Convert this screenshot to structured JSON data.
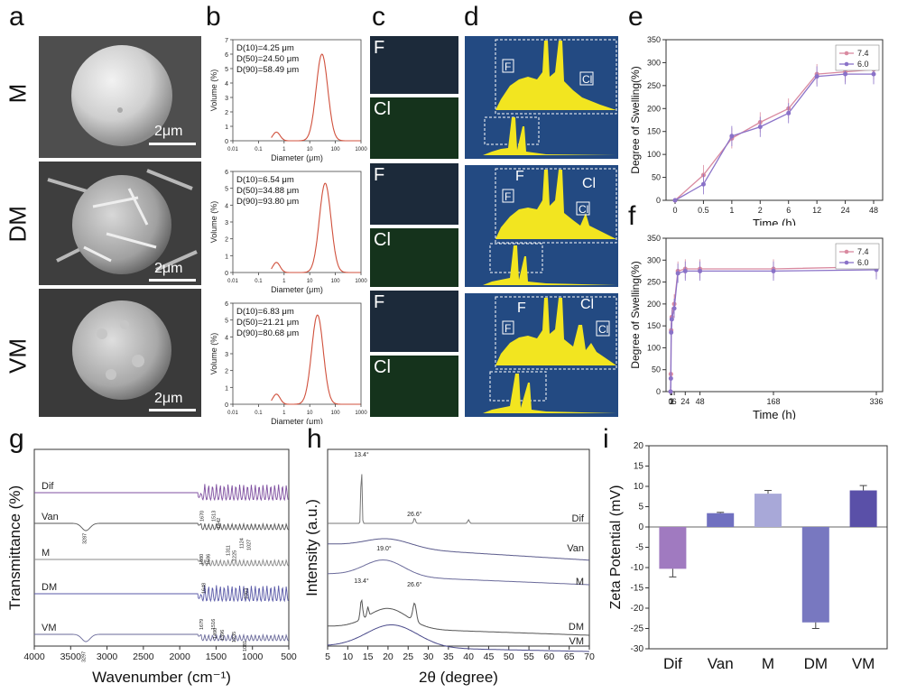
{
  "panel_letters": [
    "a",
    "b",
    "c",
    "d",
    "e",
    "f",
    "g",
    "h",
    "i"
  ],
  "sample_rows": [
    "M",
    "DM",
    "VM"
  ],
  "sem_scale": "2μm",
  "size_distribution": {
    "ylabel": "Volume (%)",
    "xlabel": "Diameter (μm)",
    "xticks": [
      "0.01",
      "0.1",
      "1",
      "10",
      "100",
      "1000"
    ],
    "panels": [
      {
        "d10": "D(10)=4.25 μm",
        "d50": "D(50)=24.50 μm",
        "d90": "D(90)=58.49 μm",
        "yticks": [
          "0",
          "1",
          "2",
          "3",
          "4",
          "5",
          "6",
          "7"
        ],
        "ymax": 7,
        "peak_x": 30,
        "peak_y": 6.0
      },
      {
        "d10": "D(10)=6.54 μm",
        "d50": "D(50)=34.88 μm",
        "d90": "D(90)=93.80 μm",
        "yticks": [
          "0",
          "1",
          "2",
          "3",
          "4",
          "5",
          "6"
        ],
        "ymax": 6,
        "peak_x": 40,
        "peak_y": 5.3
      },
      {
        "d10": "D(10)=6.83 μm",
        "d50": "D(50)=21.21 μm",
        "d90": "D(90)=80.68 μm",
        "yticks": [
          "0",
          "1",
          "2",
          "3",
          "4",
          "5",
          "6"
        ],
        "ymax": 6,
        "peak_x": 20,
        "peak_y": 5.3
      }
    ]
  },
  "eds_map_labels": [
    "F",
    "Cl"
  ],
  "eds_peak_labels": [
    "F",
    "Cl"
  ],
  "chart_data": [
    {
      "panel": "e",
      "type": "line",
      "xlabel": "Time (h)",
      "ylabel": "Degree of Swelling(%)",
      "x": [
        "0",
        "0.5",
        "1",
        "2",
        "6",
        "12",
        "24",
        "48"
      ],
      "ylim": [
        0,
        350
      ],
      "yticks": [
        "0",
        "50",
        "100",
        "150",
        "200",
        "250",
        "300",
        "350"
      ],
      "series": [
        {
          "name": "7.4",
          "color": "#d98aa0",
          "values": [
            0,
            55,
            135,
            170,
            200,
            275,
            280,
            285
          ]
        },
        {
          "name": "6.0",
          "color": "#8a72c8",
          "values": [
            0,
            35,
            140,
            160,
            190,
            270,
            275,
            275
          ]
        }
      ]
    },
    {
      "panel": "f",
      "type": "line",
      "xlabel": "Time (h)",
      "ylabel": "Degree of Swelling(%)",
      "x": [
        0,
        0.5,
        1,
        2,
        6,
        12,
        24,
        48,
        168,
        336
      ],
      "xticks": [
        "0",
        "1",
        "2",
        "6",
        "24",
        "48",
        "168",
        "336"
      ],
      "ylim": [
        0,
        350
      ],
      "yticks": [
        "0",
        "50",
        "100",
        "150",
        "200",
        "250",
        "300",
        "350"
      ],
      "series": [
        {
          "name": "7.4",
          "color": "#d98aa0",
          "values": [
            0,
            40,
            140,
            170,
            200,
            275,
            280,
            280,
            280,
            285
          ]
        },
        {
          "name": "6.0",
          "color": "#8a72c8",
          "values": [
            0,
            30,
            135,
            165,
            190,
            270,
            275,
            275,
            275,
            278
          ]
        }
      ]
    },
    {
      "panel": "g",
      "type": "line",
      "xlabel": "Wavenumber (cm⁻¹)",
      "ylabel": "Transmittance (%)",
      "xlim": [
        4000,
        500
      ],
      "xticks": [
        "4000",
        "3500",
        "3000",
        "2500",
        "2000",
        "1500",
        "1000",
        "500"
      ],
      "series": [
        {
          "name": "Dif",
          "color": "#7f4fa0"
        },
        {
          "name": "Van",
          "color": "#555555"
        },
        {
          "name": "M",
          "color": "#8a8a8a"
        },
        {
          "name": "DM",
          "color": "#5a5aa8"
        },
        {
          "name": "VM",
          "color": "#6a6a9a"
        }
      ],
      "annotations": [
        "3287",
        "1670",
        "1513",
        "1442",
        "1680",
        "1586",
        "1311",
        "1225",
        "1124",
        "1027",
        "1648",
        "1063",
        "1679",
        "1516",
        "1490",
        "1396",
        "1235",
        "3297",
        "1081"
      ]
    },
    {
      "panel": "h",
      "type": "line",
      "xlabel": "2θ (degree)",
      "ylabel": "Intensity (a.u.)",
      "xlim": [
        5,
        70
      ],
      "xticks": [
        "5",
        "10",
        "15",
        "20",
        "25",
        "30",
        "35",
        "40",
        "45",
        "50",
        "55",
        "60",
        "65",
        "70"
      ],
      "series": [
        {
          "name": "Dif",
          "color": "#777777"
        },
        {
          "name": "Van",
          "color": "#5b5b8c"
        },
        {
          "name": "M",
          "color": "#6a6a9a"
        },
        {
          "name": "DM",
          "color": "#555555"
        },
        {
          "name": "VM",
          "color": "#4a4a8a"
        }
      ],
      "annotations": [
        "13.4°",
        "26.6°",
        "19.0°",
        "13.4°",
        "26.6°"
      ]
    },
    {
      "panel": "i",
      "type": "bar",
      "ylabel": "Zeta Potential (mV)",
      "categories": [
        "Dif",
        "Van",
        "M",
        "DM",
        "VM"
      ],
      "values": [
        -10.3,
        3.4,
        8.2,
        -23.5,
        9.0
      ],
      "errors": [
        2.0,
        0.2,
        0.8,
        1.5,
        1.2
      ],
      "colors": [
        "#a07ac0",
        "#7070c0",
        "#a8a8d8",
        "#7878c0",
        "#5a50a8"
      ],
      "ylim": [
        -30,
        20
      ],
      "yticks": [
        "-30",
        "-25",
        "-20",
        "-15",
        "-10",
        "-5",
        "0",
        "5",
        "10",
        "15",
        "20"
      ]
    }
  ]
}
